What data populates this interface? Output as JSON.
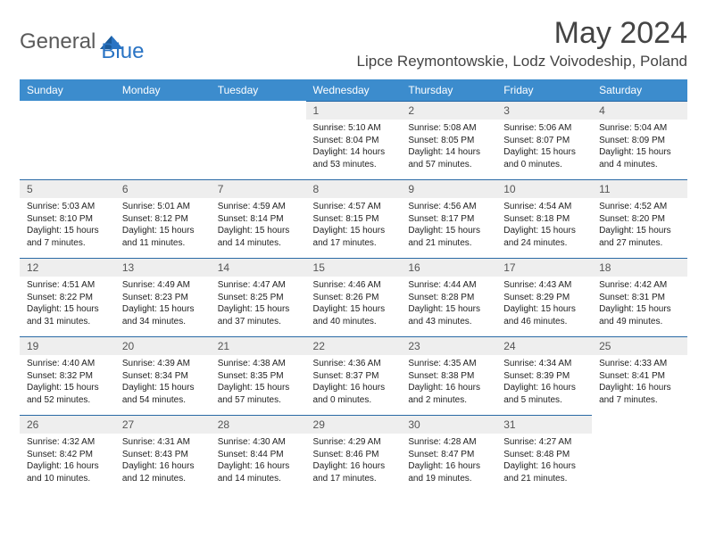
{
  "brand": {
    "part1": "General",
    "part2": "Blue"
  },
  "title": {
    "month": "May 2024",
    "location": "Lipce Reymontowskie, Lodz Voivodeship, Poland"
  },
  "colors": {
    "header_bg": "#3c8ccd",
    "header_text": "#ffffff",
    "daynum_bg": "#eeeeee",
    "border": "#2a6aa5",
    "brand_gray": "#5a5a5a",
    "brand_blue": "#2a74c4"
  },
  "weekdays": [
    "Sunday",
    "Monday",
    "Tuesday",
    "Wednesday",
    "Thursday",
    "Friday",
    "Saturday"
  ],
  "weeks": [
    [
      null,
      null,
      null,
      {
        "n": "1",
        "sr": "5:10 AM",
        "ss": "8:04 PM",
        "dl": "14 hours and 53 minutes."
      },
      {
        "n": "2",
        "sr": "5:08 AM",
        "ss": "8:05 PM",
        "dl": "14 hours and 57 minutes."
      },
      {
        "n": "3",
        "sr": "5:06 AM",
        "ss": "8:07 PM",
        "dl": "15 hours and 0 minutes."
      },
      {
        "n": "4",
        "sr": "5:04 AM",
        "ss": "8:09 PM",
        "dl": "15 hours and 4 minutes."
      }
    ],
    [
      {
        "n": "5",
        "sr": "5:03 AM",
        "ss": "8:10 PM",
        "dl": "15 hours and 7 minutes."
      },
      {
        "n": "6",
        "sr": "5:01 AM",
        "ss": "8:12 PM",
        "dl": "15 hours and 11 minutes."
      },
      {
        "n": "7",
        "sr": "4:59 AM",
        "ss": "8:14 PM",
        "dl": "15 hours and 14 minutes."
      },
      {
        "n": "8",
        "sr": "4:57 AM",
        "ss": "8:15 PM",
        "dl": "15 hours and 17 minutes."
      },
      {
        "n": "9",
        "sr": "4:56 AM",
        "ss": "8:17 PM",
        "dl": "15 hours and 21 minutes."
      },
      {
        "n": "10",
        "sr": "4:54 AM",
        "ss": "8:18 PM",
        "dl": "15 hours and 24 minutes."
      },
      {
        "n": "11",
        "sr": "4:52 AM",
        "ss": "8:20 PM",
        "dl": "15 hours and 27 minutes."
      }
    ],
    [
      {
        "n": "12",
        "sr": "4:51 AM",
        "ss": "8:22 PM",
        "dl": "15 hours and 31 minutes."
      },
      {
        "n": "13",
        "sr": "4:49 AM",
        "ss": "8:23 PM",
        "dl": "15 hours and 34 minutes."
      },
      {
        "n": "14",
        "sr": "4:47 AM",
        "ss": "8:25 PM",
        "dl": "15 hours and 37 minutes."
      },
      {
        "n": "15",
        "sr": "4:46 AM",
        "ss": "8:26 PM",
        "dl": "15 hours and 40 minutes."
      },
      {
        "n": "16",
        "sr": "4:44 AM",
        "ss": "8:28 PM",
        "dl": "15 hours and 43 minutes."
      },
      {
        "n": "17",
        "sr": "4:43 AM",
        "ss": "8:29 PM",
        "dl": "15 hours and 46 minutes."
      },
      {
        "n": "18",
        "sr": "4:42 AM",
        "ss": "8:31 PM",
        "dl": "15 hours and 49 minutes."
      }
    ],
    [
      {
        "n": "19",
        "sr": "4:40 AM",
        "ss": "8:32 PM",
        "dl": "15 hours and 52 minutes."
      },
      {
        "n": "20",
        "sr": "4:39 AM",
        "ss": "8:34 PM",
        "dl": "15 hours and 54 minutes."
      },
      {
        "n": "21",
        "sr": "4:38 AM",
        "ss": "8:35 PM",
        "dl": "15 hours and 57 minutes."
      },
      {
        "n": "22",
        "sr": "4:36 AM",
        "ss": "8:37 PM",
        "dl": "16 hours and 0 minutes."
      },
      {
        "n": "23",
        "sr": "4:35 AM",
        "ss": "8:38 PM",
        "dl": "16 hours and 2 minutes."
      },
      {
        "n": "24",
        "sr": "4:34 AM",
        "ss": "8:39 PM",
        "dl": "16 hours and 5 minutes."
      },
      {
        "n": "25",
        "sr": "4:33 AM",
        "ss": "8:41 PM",
        "dl": "16 hours and 7 minutes."
      }
    ],
    [
      {
        "n": "26",
        "sr": "4:32 AM",
        "ss": "8:42 PM",
        "dl": "16 hours and 10 minutes."
      },
      {
        "n": "27",
        "sr": "4:31 AM",
        "ss": "8:43 PM",
        "dl": "16 hours and 12 minutes."
      },
      {
        "n": "28",
        "sr": "4:30 AM",
        "ss": "8:44 PM",
        "dl": "16 hours and 14 minutes."
      },
      {
        "n": "29",
        "sr": "4:29 AM",
        "ss": "8:46 PM",
        "dl": "16 hours and 17 minutes."
      },
      {
        "n": "30",
        "sr": "4:28 AM",
        "ss": "8:47 PM",
        "dl": "16 hours and 19 minutes."
      },
      {
        "n": "31",
        "sr": "4:27 AM",
        "ss": "8:48 PM",
        "dl": "16 hours and 21 minutes."
      },
      null
    ]
  ],
  "labels": {
    "sunrise": "Sunrise: ",
    "sunset": "Sunset: ",
    "daylight": "Daylight: "
  }
}
